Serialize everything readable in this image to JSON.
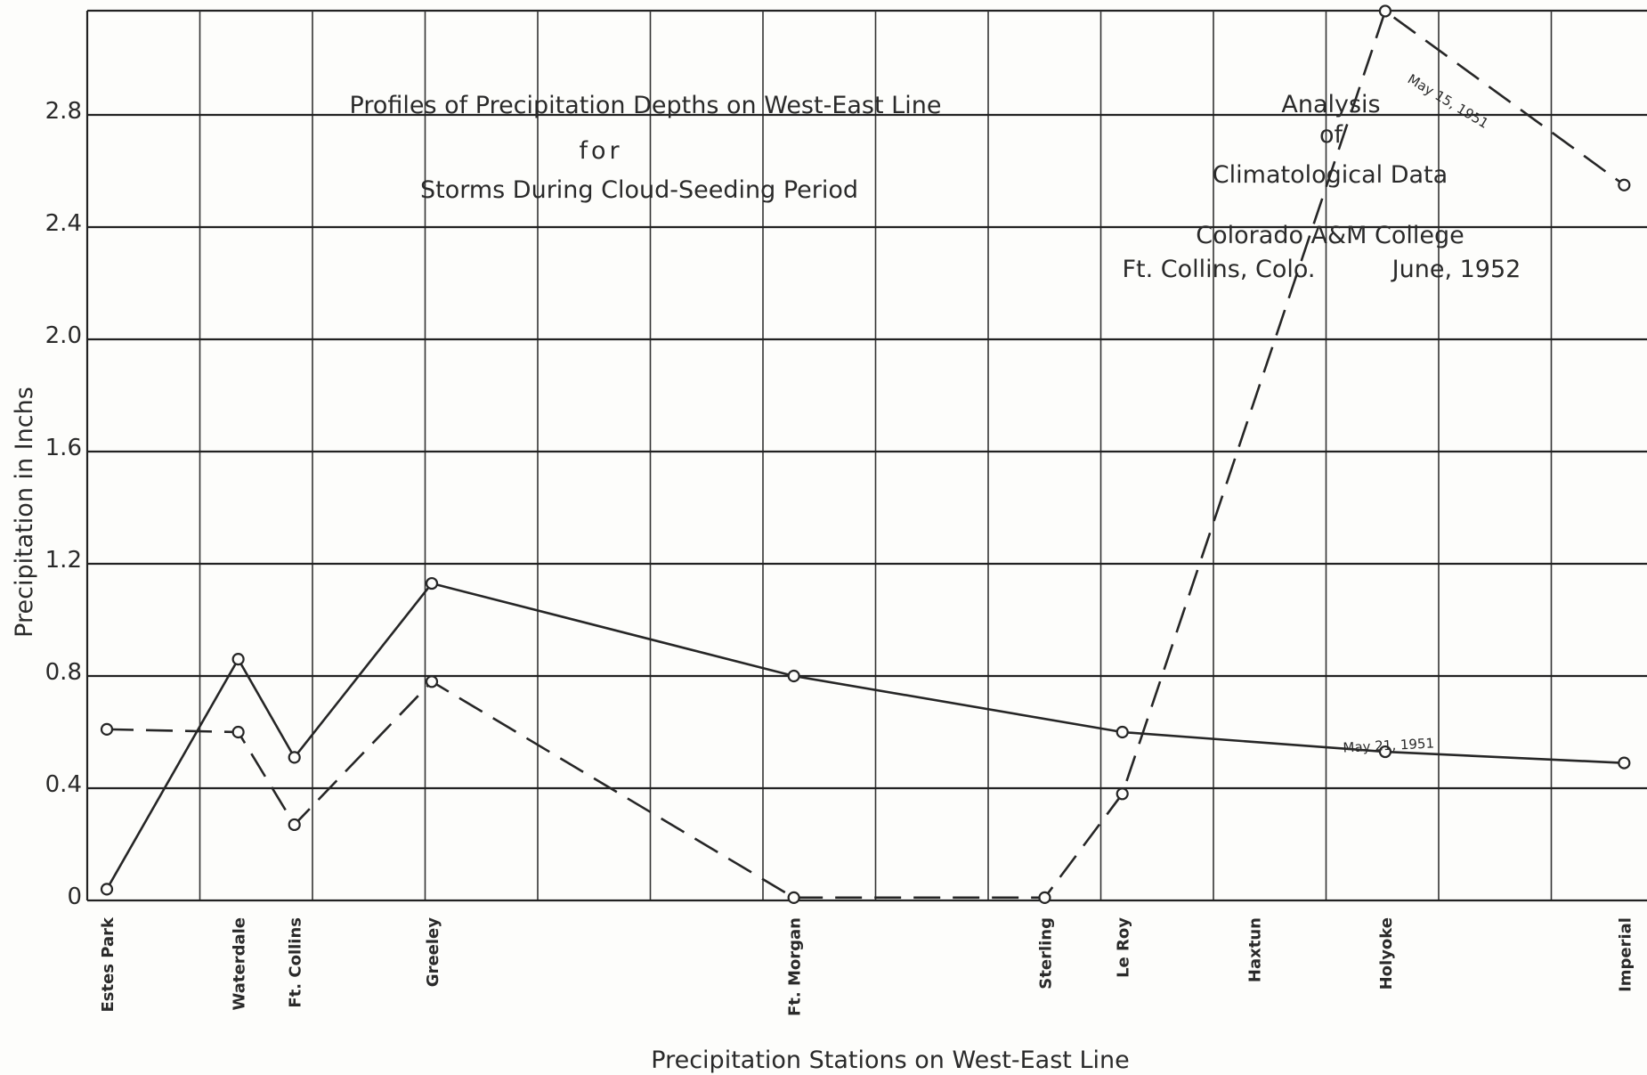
{
  "chart_data": {
    "type": "line",
    "title_lines": [
      "Profiles of Precipitation Depths on West-East Line",
      "for",
      "Storms During Cloud-Seeding Period"
    ],
    "notes": {
      "analysis_lines": [
        "Analysis",
        "of",
        "Climatological Data"
      ],
      "institution_line": "Colorado A&M College",
      "location_line": "Ft. Collins, Colo.",
      "date_line": "June, 1952"
    },
    "xlabel": "Precipitation Stations on West-East Line",
    "ylabel": "Precipitation in Inchs",
    "yticks": [
      "0",
      "0.4",
      "0.8",
      "1.2",
      "1.6",
      "2.0",
      "2.4",
      "2.8"
    ],
    "ylim": [
      0,
      3.2
    ],
    "stations": [
      {
        "name": "Estes Park",
        "pos": 0
      },
      {
        "name": "Waterdale",
        "pos": 1.1
      },
      {
        "name": "Ft. Collins",
        "pos": 1.57
      },
      {
        "name": "Greeley",
        "pos": 2.72
      },
      {
        "name": "Ft. Morgan",
        "pos": 5.75
      },
      {
        "name": "Sterling",
        "pos": 7.85
      },
      {
        "name": "Le Roy",
        "pos": 8.5
      },
      {
        "name": "Haxtun",
        "pos": 9.6
      },
      {
        "name": "Holyoke",
        "pos": 10.7
      },
      {
        "name": "Imperial",
        "pos": 12.7
      }
    ],
    "series": [
      {
        "name": "May 21, 1951",
        "style": "solid",
        "points": [
          {
            "station": "Estes Park",
            "y": 0.04
          },
          {
            "station": "Waterdale",
            "y": 0.86
          },
          {
            "station": "Ft. Collins",
            "y": 0.51
          },
          {
            "station": "Greeley",
            "y": 1.13
          },
          {
            "station": "Ft. Morgan",
            "y": 0.8
          },
          {
            "station": "Le Roy",
            "y": 0.6
          },
          {
            "station": "Holyoke",
            "y": 0.53
          },
          {
            "station": "Imperial",
            "y": 0.49
          }
        ]
      },
      {
        "name": "May 15, 1951",
        "style": "dashed",
        "points": [
          {
            "station": "Estes Park",
            "y": 0.61
          },
          {
            "station": "Waterdale",
            "y": 0.6
          },
          {
            "station": "Ft. Collins",
            "y": 0.27
          },
          {
            "station": "Greeley",
            "y": 0.78
          },
          {
            "station": "Ft. Morgan",
            "y": 0.01
          },
          {
            "station": "Sterling",
            "y": 0.01
          },
          {
            "station": "Le Roy",
            "y": 0.38
          },
          {
            "station": "Holyoke",
            "y": 3.17
          },
          {
            "station": "Imperial",
            "y": 2.55
          }
        ]
      }
    ],
    "grid": true
  }
}
